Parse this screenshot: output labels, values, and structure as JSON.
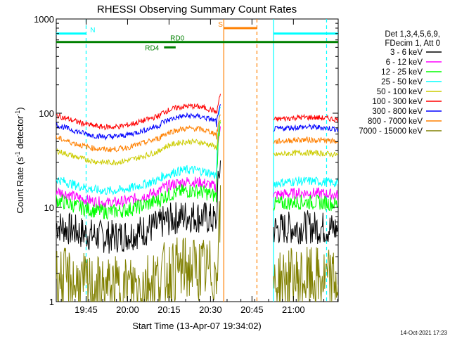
{
  "chart_data": {
    "type": "line",
    "title": "RHESSI Observing Summary Count Rates",
    "xlabel": "Start Time (13-Apr-07 19:34:02)",
    "ylabel_main": "Count Rate (s",
    "ylabel_sup1": "-1",
    "ylabel_mid": " detector",
    "ylabel_sup2": "-1",
    "ylabel_end": ")",
    "yscale": "log",
    "xlim_minutes": [
      19.57,
      21.27
    ],
    "ylim": [
      1,
      1000
    ],
    "xticks": [
      {
        "value": 19.75,
        "label": "19:45"
      },
      {
        "value": 20.0,
        "label": "20:00"
      },
      {
        "value": 20.25,
        "label": "20:15"
      },
      {
        "value": 20.5,
        "label": "20:30"
      },
      {
        "value": 20.75,
        "label": "20:45"
      },
      {
        "value": 21.0,
        "label": "21:00"
      }
    ],
    "yticks": [
      {
        "value": 1,
        "label": "1"
      },
      {
        "value": 10,
        "label": "10"
      },
      {
        "value": 100,
        "label": "100"
      },
      {
        "value": 1000,
        "label": "1000"
      }
    ],
    "legend_header": [
      "Det 1,3,4,5,6,9,",
      "FDecim 1, Att 0"
    ],
    "series": [
      {
        "name": "3 - 6 keV",
        "color": "#000000",
        "base": 6.5,
        "scatter": 0.18,
        "flare": 30
      },
      {
        "name": "6 - 12 keV",
        "color": "#ff00ff",
        "base": 15,
        "scatter": 0.06,
        "flare": 80
      },
      {
        "name": "12 - 25 keV",
        "color": "#00ff00",
        "base": 12,
        "scatter": 0.08,
        "flare": 90
      },
      {
        "name": "25 - 50 keV",
        "color": "#00ffff",
        "base": 20,
        "scatter": 0.05,
        "flare": 120
      },
      {
        "name": "50 - 100 keV",
        "color": "#cccc00",
        "base": 40,
        "scatter": 0.03,
        "flare": 80
      },
      {
        "name": "100 - 300 keV",
        "color": "#ff0000",
        "base": 95,
        "scatter": 0.03,
        "flare": 160
      },
      {
        "name": "300 - 800 keV",
        "color": "#0000ff",
        "base": 75,
        "scatter": 0.03,
        "flare": 120
      },
      {
        "name": "800 - 7000 keV",
        "color": "#ff8000",
        "base": 55,
        "scatter": 0.03,
        "flare": 100
      },
      {
        "name": "7000 - 15000 keV",
        "color": "#808000",
        "base": 1.8,
        "scatter": 0.35,
        "flare": 8
      }
    ],
    "data_gaps": [
      {
        "start": 20.56,
        "end": 20.88
      }
    ],
    "flags": [
      {
        "label": "N",
        "color": "#00ffff",
        "y": 700,
        "segments": [
          [
            19.57,
            19.75
          ],
          [
            20.88,
            21.27
          ]
        ]
      },
      {
        "label": "S",
        "color": "#ff8000",
        "y": 800,
        "segments": [
          [
            20.58,
            20.78
          ]
        ]
      },
      {
        "label": "RD0",
        "color": "#008000",
        "y": 570,
        "segments": [
          [
            19.57,
            21.27
          ]
        ]
      },
      {
        "label": "RD4",
        "color": "#008000",
        "y": 500,
        "segments": [
          [
            20.22,
            20.29
          ]
        ]
      }
    ],
    "vertical_lines": [
      {
        "x": 19.75,
        "color": "#00ffff",
        "style": "dashed"
      },
      {
        "x": 20.58,
        "color": "#ff8000",
        "style": "solid"
      },
      {
        "x": 20.78,
        "color": "#ff8000",
        "style": "dashed"
      },
      {
        "x": 20.88,
        "color": "#00ffff",
        "style": "solid"
      },
      {
        "x": 21.2,
        "color": "#00ffff",
        "style": "dashed"
      }
    ],
    "footer_timestamp": "14-Oct-2021 17:23"
  }
}
